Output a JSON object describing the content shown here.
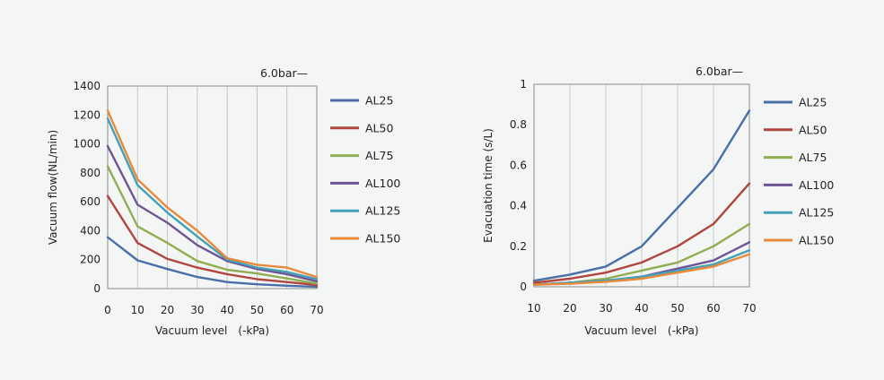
{
  "chart_data": [
    {
      "type": "line",
      "title": "",
      "pressure_label": "6.0bar—",
      "xlabel": "Vacuum level　(-kPa)",
      "ylabel": "Vacuum flow(NL/min)",
      "x": [
        0,
        10,
        20,
        30,
        40,
        50,
        60,
        70
      ],
      "xticks": [
        "0",
        "10",
        "20",
        "30",
        "40",
        "50",
        "60",
        "70"
      ],
      "xlim": [
        0,
        70
      ],
      "ylim": [
        0,
        1400
      ],
      "yticks": [
        "0",
        "200",
        "400",
        "600",
        "800",
        "1000",
        "1200",
        "1400"
      ],
      "ytick_values": [
        0,
        200,
        400,
        600,
        800,
        1000,
        1200,
        1400
      ],
      "series": [
        {
          "name": "AL25",
          "color": "#4a6fa8",
          "values": [
            355,
            195,
            135,
            80,
            45,
            30,
            20,
            12
          ]
        },
        {
          "name": "AL50",
          "color": "#b0463e",
          "values": [
            640,
            315,
            205,
            145,
            100,
            65,
            45,
            25
          ]
        },
        {
          "name": "AL75",
          "color": "#8fae52",
          "values": [
            845,
            430,
            315,
            190,
            130,
            105,
            70,
            35
          ]
        },
        {
          "name": "AL100",
          "color": "#6f5495",
          "values": [
            985,
            580,
            455,
            300,
            190,
            135,
            100,
            50
          ]
        },
        {
          "name": "AL125",
          "color": "#44a0b8",
          "values": [
            1175,
            715,
            525,
            360,
            200,
            145,
            115,
            65
          ]
        },
        {
          "name": "AL150",
          "color": "#e98a3a",
          "values": [
            1230,
            755,
            560,
            400,
            210,
            165,
            145,
            80
          ]
        }
      ]
    },
    {
      "type": "line",
      "title": "",
      "pressure_label": "6.0bar—",
      "xlabel": "Vacuum level　(-kPa)",
      "ylabel": "Evacuation time (s/L)",
      "x": [
        10,
        20,
        30,
        40,
        50,
        60,
        70
      ],
      "xticks": [
        "10",
        "20",
        "30",
        "40",
        "50",
        "60",
        "70"
      ],
      "xlim": [
        10,
        70
      ],
      "ylim": [
        0,
        1
      ],
      "yticks": [
        "0",
        "0.2",
        "0.4",
        "0.6",
        "0.8",
        "1"
      ],
      "ytick_values": [
        0,
        0.2,
        0.4,
        0.6,
        0.8,
        1
      ],
      "series": [
        {
          "name": "AL25",
          "color": "#4a6fa8",
          "values": [
            0.03,
            0.06,
            0.1,
            0.2,
            0.39,
            0.58,
            0.87
          ]
        },
        {
          "name": "AL50",
          "color": "#b0463e",
          "values": [
            0.02,
            0.04,
            0.07,
            0.12,
            0.2,
            0.31,
            0.51
          ]
        },
        {
          "name": "AL75",
          "color": "#8fae52",
          "values": [
            0.01,
            0.02,
            0.04,
            0.08,
            0.12,
            0.2,
            0.31
          ]
        },
        {
          "name": "AL100",
          "color": "#6f5495",
          "values": [
            0.01,
            0.02,
            0.03,
            0.05,
            0.09,
            0.13,
            0.22
          ]
        },
        {
          "name": "AL125",
          "color": "#44a0b8",
          "values": [
            0.01,
            0.02,
            0.03,
            0.05,
            0.08,
            0.11,
            0.18
          ]
        },
        {
          "name": "AL150",
          "color": "#e98a3a",
          "values": [
            0.01,
            0.015,
            0.025,
            0.04,
            0.07,
            0.1,
            0.16
          ]
        }
      ]
    }
  ]
}
